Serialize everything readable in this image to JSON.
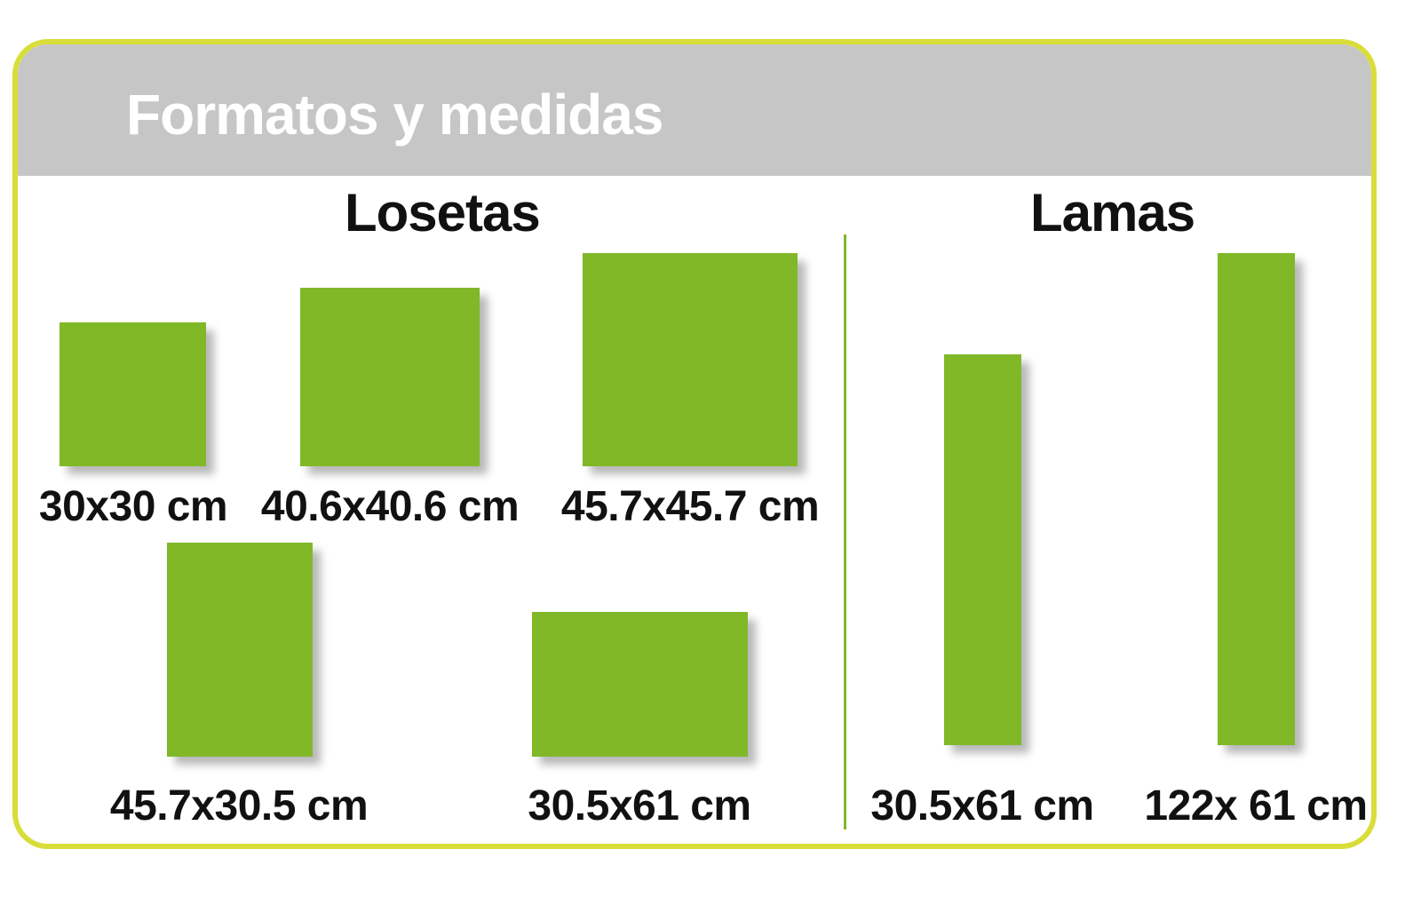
{
  "header": {
    "title": "Formatos y medidas"
  },
  "sections": {
    "losetas": {
      "title": "Losetas",
      "items": [
        {
          "label": "30x30 cm"
        },
        {
          "label": "40.6x40.6 cm"
        },
        {
          "label": "45.7x45.7 cm"
        },
        {
          "label": "45.7x30.5 cm"
        },
        {
          "label": "30.5x61 cm"
        }
      ]
    },
    "lamas": {
      "title": "Lamas",
      "items": [
        {
          "label": "30.5x61 cm"
        },
        {
          "label": "122x 61 cm"
        }
      ]
    }
  },
  "colors": {
    "tile_green": "#80b828",
    "frame_yellow": "#d9dd3a",
    "header_gray": "#c6c6c6"
  }
}
